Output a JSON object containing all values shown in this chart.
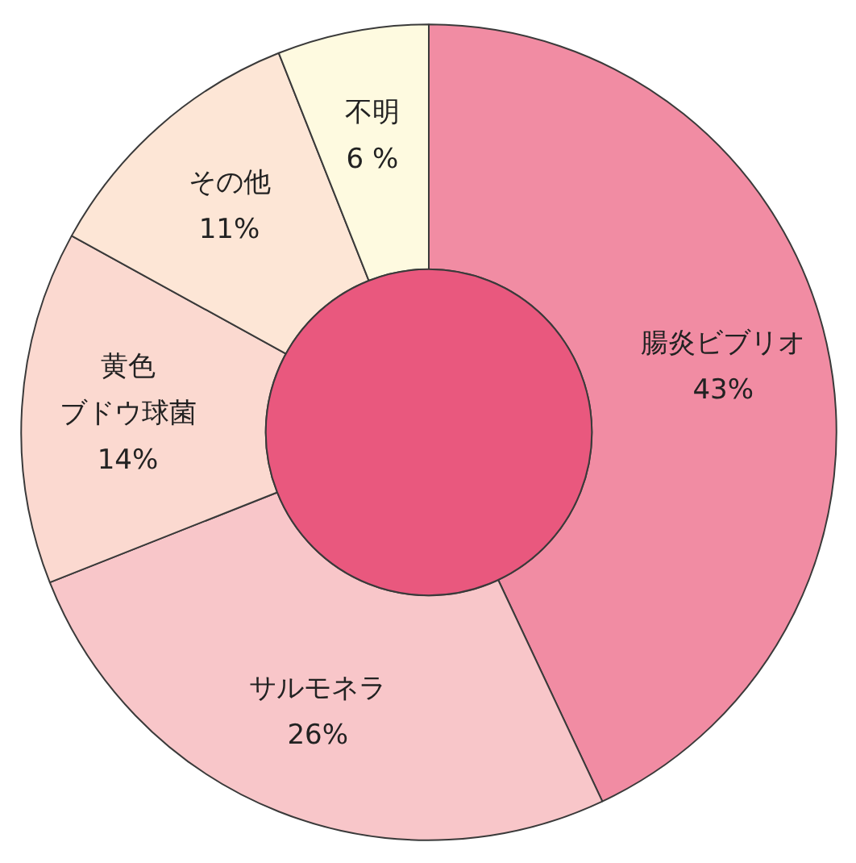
{
  "chart_data": {
    "type": "donut",
    "categories": [
      "腸炎ビブリオ",
      "サルモネラ",
      "黄色ブドウ球菌",
      "その他",
      "不明"
    ],
    "values": [
      43,
      26,
      14,
      11,
      6
    ],
    "colors": [
      "#f18ca3",
      "#f8c6c9",
      "#fbd9d0",
      "#fde6d6",
      "#fefae0"
    ],
    "value_labels": [
      "43%",
      "26%",
      "14%",
      "11%",
      "6 %"
    ]
  }
}
